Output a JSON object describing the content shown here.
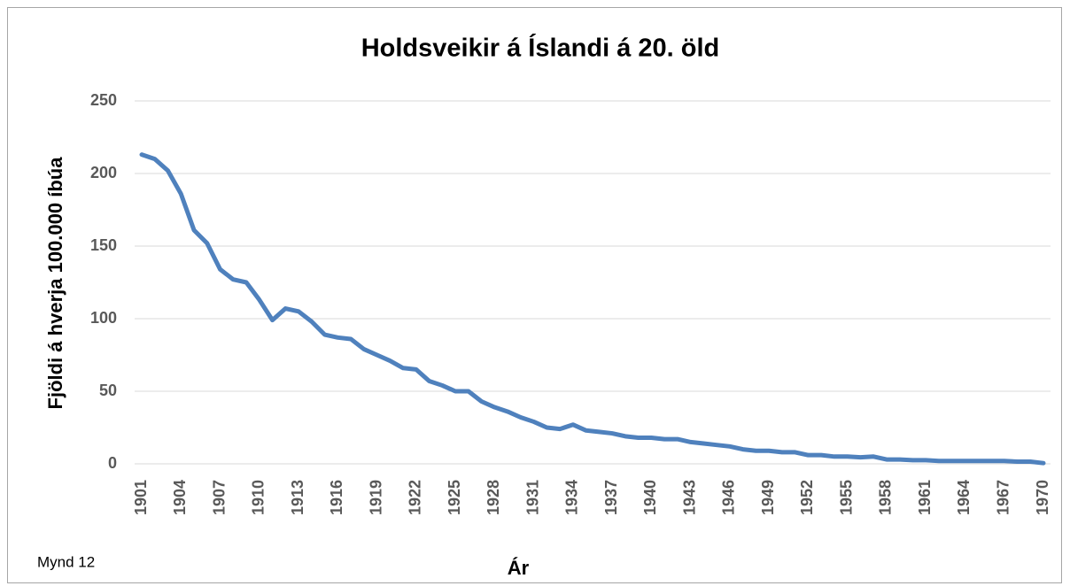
{
  "chart_data": {
    "type": "line",
    "title": "Holdsveikir á Íslandi á 20. öld",
    "xlabel": "Ár",
    "ylabel": "Fjöldi á hverja 100.000 íbúa",
    "annotation": "Mynd 12",
    "color": "#4f81bd",
    "x": [
      1901,
      1902,
      1903,
      1904,
      1905,
      1906,
      1907,
      1908,
      1909,
      1910,
      1911,
      1912,
      1913,
      1914,
      1915,
      1916,
      1917,
      1918,
      1919,
      1920,
      1921,
      1922,
      1923,
      1924,
      1925,
      1926,
      1927,
      1928,
      1929,
      1930,
      1931,
      1932,
      1933,
      1934,
      1935,
      1936,
      1937,
      1938,
      1939,
      1940,
      1941,
      1942,
      1943,
      1944,
      1945,
      1946,
      1947,
      1948,
      1949,
      1950,
      1951,
      1952,
      1953,
      1954,
      1955,
      1956,
      1957,
      1958,
      1959,
      1960,
      1961,
      1962,
      1963,
      1964,
      1965,
      1966,
      1967,
      1968,
      1969,
      1970
    ],
    "values": [
      213,
      210,
      202,
      186,
      161,
      152,
      134,
      127,
      125,
      113,
      99,
      107,
      105,
      98,
      89,
      87,
      86,
      79,
      75,
      71,
      66,
      65,
      57,
      54,
      50,
      50,
      43,
      39,
      36,
      32,
      29,
      25,
      24,
      27,
      23,
      22,
      21,
      19,
      18,
      18,
      17,
      17,
      15,
      14,
      13,
      12,
      10,
      9,
      9,
      8,
      8,
      6,
      6,
      5,
      5,
      4.5,
      5,
      3,
      3,
      2.5,
      2.5,
      2,
      2,
      2,
      2,
      2,
      2,
      1.5,
      1.5,
      0.5
    ],
    "xlim": [
      1901,
      1970
    ],
    "xticks": [
      1901,
      1904,
      1907,
      1910,
      1913,
      1916,
      1919,
      1922,
      1925,
      1928,
      1931,
      1934,
      1937,
      1940,
      1943,
      1946,
      1949,
      1952,
      1955,
      1958,
      1961,
      1964,
      1967,
      1970
    ],
    "ylim": [
      0,
      250
    ],
    "yticks": [
      0,
      50,
      100,
      150,
      200,
      250
    ],
    "grid": true
  }
}
